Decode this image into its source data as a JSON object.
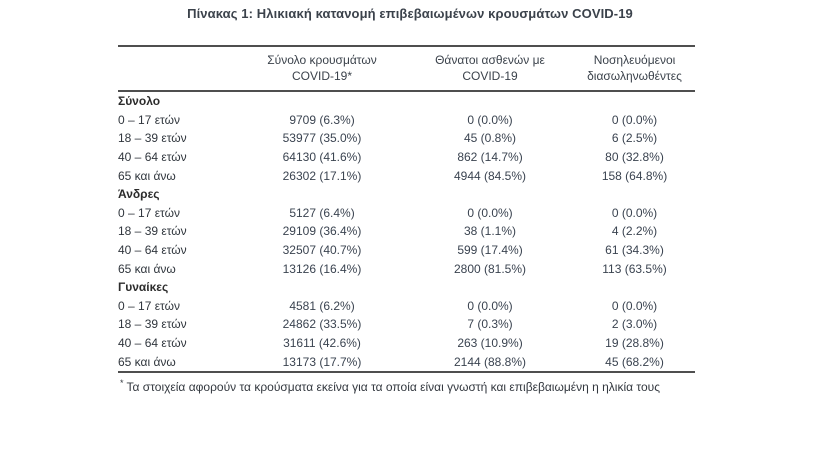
{
  "title": "Πίνακας 1: Ηλικιακή κατανομή επιβεβαιωμένων κρουσμάτων COVID-19",
  "table": {
    "columns": [
      {
        "line1": "Σύνολο κρουσμάτων",
        "line2": "COVID-19*"
      },
      {
        "line1": "Θάνατοι ασθενών με",
        "line2": "COVID-19"
      },
      {
        "line1": "Νοσηλευόμενοι",
        "line2": "διασωληνωθέντες"
      }
    ],
    "sections": [
      {
        "label": "Σύνολο",
        "rows": [
          {
            "label": "0 – 17 ετών",
            "cases": "9709 (6.3%)",
            "deaths": "0 (0.0%)",
            "intubated": "0 (0.0%)"
          },
          {
            "label": "18 – 39 ετών",
            "cases": "53977 (35.0%)",
            "deaths": "45 (0.8%)",
            "intubated": "6 (2.5%)"
          },
          {
            "label": "40 – 64 ετών",
            "cases": "64130 (41.6%)",
            "deaths": "862 (14.7%)",
            "intubated": "80 (32.8%)"
          },
          {
            "label": "65 και άνω",
            "cases": "26302 (17.1%)",
            "deaths": "4944 (84.5%)",
            "intubated": "158 (64.8%)"
          }
        ]
      },
      {
        "label": "Άνδρες",
        "rows": [
          {
            "label": "0 – 17 ετών",
            "cases": "5127 (6.4%)",
            "deaths": "0 (0.0%)",
            "intubated": "0 (0.0%)"
          },
          {
            "label": "18 – 39 ετών",
            "cases": "29109 (36.4%)",
            "deaths": "38 (1.1%)",
            "intubated": "4 (2.2%)"
          },
          {
            "label": "40 – 64 ετών",
            "cases": "32507 (40.7%)",
            "deaths": "599 (17.4%)",
            "intubated": "61 (34.3%)"
          },
          {
            "label": "65 και άνω",
            "cases": "13126 (16.4%)",
            "deaths": "2800 (81.5%)",
            "intubated": "113 (63.5%)"
          }
        ]
      },
      {
        "label": "Γυναίκες",
        "rows": [
          {
            "label": "0 – 17 ετών",
            "cases": "4581 (6.2%)",
            "deaths": "0 (0.0%)",
            "intubated": "0 (0.0%)"
          },
          {
            "label": "18 – 39 ετών",
            "cases": "24862 (33.5%)",
            "deaths": "7 (0.3%)",
            "intubated": "2 (3.0%)"
          },
          {
            "label": "40 – 64 ετών",
            "cases": "31611 (42.6%)",
            "deaths": "263 (10.9%)",
            "intubated": "19 (28.8%)"
          },
          {
            "label": "65 και άνω",
            "cases": "13173 (17.7%)",
            "deaths": "2144 (88.8%)",
            "intubated": "45 (68.2%)"
          }
        ]
      }
    ],
    "footnote_marker": "*",
    "footnote": "Τα στοιχεία αφορούν τα κρούσματα εκείνα για τα οποία είναι γνωστή και επιβεβαιωμένη η ηλικία τους"
  }
}
